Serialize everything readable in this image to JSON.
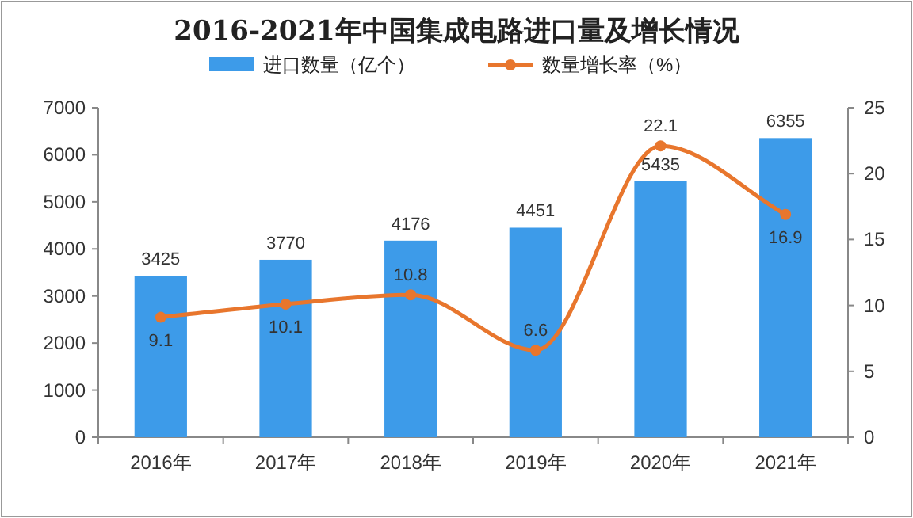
{
  "chart_data": {
    "type": "bar",
    "title": "2016-2021年中国集成电路进口量及增长情况",
    "categories": [
      "2016年",
      "2017年",
      "2018年",
      "2019年",
      "2020年",
      "2021年"
    ],
    "series": [
      {
        "name": "进口数量（亿个）",
        "color": "#3d9be9",
        "values": [
          3425,
          3770,
          4176,
          4451,
          5435,
          6355
        ]
      },
      {
        "name": "数量增长率（%）",
        "type": "line",
        "axis": "y2",
        "color": "#e8762d",
        "marker": "circle",
        "values": [
          9.1,
          10.1,
          10.8,
          6.6,
          22.1,
          16.9
        ]
      }
    ],
    "ylim": [
      0,
      7000
    ],
    "yticks": [
      0,
      1000,
      2000,
      3000,
      4000,
      5000,
      6000,
      7000
    ],
    "y2lim": [
      0,
      25
    ],
    "y2ticks": [
      0,
      5,
      10,
      15,
      20,
      25
    ],
    "data_labels": true,
    "legend": "top"
  }
}
